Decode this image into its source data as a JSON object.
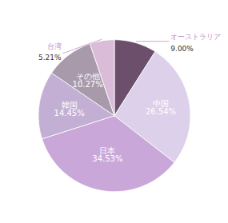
{
  "chart_data": {
    "type": "pie",
    "categories": [
      "オーストラリア",
      "中国",
      "日本",
      "韓国",
      "その他",
      "台湾"
    ],
    "values": [
      9.0,
      26.54,
      34.53,
      14.45,
      10.27,
      5.21
    ],
    "value_labels": [
      "9.00%",
      "26.54%",
      "34.53%",
      "14.45%",
      "10.27%",
      "5.21%"
    ],
    "colors": [
      "#6b4f6b",
      "#ddd0ea",
      "#c9a8d9",
      "#c4afd4",
      "#a89aaa",
      "#dbbcd8"
    ],
    "data_labels": true
  }
}
